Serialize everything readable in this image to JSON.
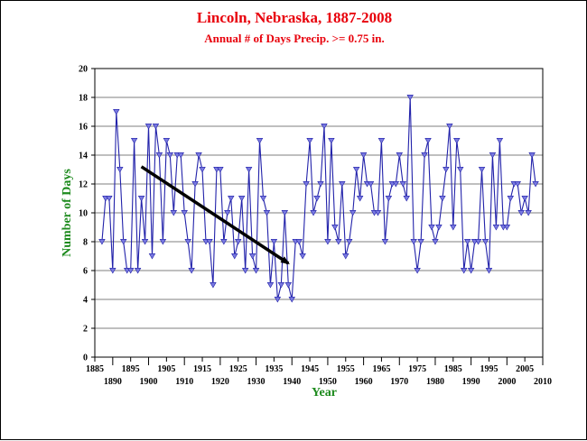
{
  "colors": {
    "title": "#e8000b",
    "axis_label": "#1d8a1d",
    "series": "#2222aa",
    "marker": "#7a7ae0",
    "grid": "#000000",
    "arrow": "#000000"
  },
  "chart_data": {
    "type": "line",
    "title": "Lincoln, Nebraska, 1887-2008",
    "subtitle": "Annual # of Days Precip. >= 0.75 in.",
    "xlabel": "Year",
    "ylabel": "Number of Days",
    "xlim": [
      1885,
      2010
    ],
    "ylim": [
      0,
      20
    ],
    "grid": "horizontal",
    "x_ticks_top": [
      1885,
      1895,
      1905,
      1915,
      1925,
      1935,
      1945,
      1955,
      1965,
      1975,
      1985,
      1995,
      2005
    ],
    "x_ticks_bottom": [
      1890,
      1900,
      1910,
      1920,
      1930,
      1940,
      1950,
      1960,
      1970,
      1980,
      1990,
      2000,
      2010
    ],
    "y_ticks": [
      0,
      2,
      4,
      6,
      8,
      10,
      12,
      14,
      16,
      18,
      20
    ],
    "series": [
      {
        "marker": "down-triangle",
        "x": [
          1887,
          1888,
          1889,
          1890,
          1891,
          1892,
          1893,
          1894,
          1895,
          1896,
          1897,
          1898,
          1899,
          1900,
          1901,
          1902,
          1903,
          1904,
          1905,
          1906,
          1907,
          1908,
          1909,
          1910,
          1911,
          1912,
          1913,
          1914,
          1915,
          1916,
          1917,
          1918,
          1919,
          1920,
          1921,
          1922,
          1923,
          1924,
          1925,
          1926,
          1927,
          1928,
          1929,
          1930,
          1931,
          1932,
          1933,
          1934,
          1935,
          1936,
          1937,
          1938,
          1939,
          1940,
          1941,
          1942,
          1943,
          1944,
          1945,
          1946,
          1947,
          1948,
          1949,
          1950,
          1951,
          1952,
          1953,
          1954,
          1955,
          1956,
          1957,
          1958,
          1959,
          1960,
          1961,
          1962,
          1963,
          1964,
          1965,
          1966,
          1967,
          1968,
          1969,
          1970,
          1971,
          1972,
          1973,
          1974,
          1975,
          1976,
          1977,
          1978,
          1979,
          1980,
          1981,
          1982,
          1983,
          1984,
          1985,
          1986,
          1987,
          1988,
          1989,
          1990,
          1991,
          1992,
          1993,
          1994,
          1995,
          1996,
          1997,
          1998,
          1999,
          2000,
          2001,
          2002,
          2003,
          2004,
          2005,
          2006,
          2007,
          2008
        ],
        "values": [
          8,
          11,
          11,
          6,
          17,
          13,
          8,
          6,
          6,
          15,
          6,
          11,
          8,
          16,
          7,
          16,
          14,
          8,
          15,
          14,
          10,
          14,
          14,
          10,
          8,
          6,
          12,
          14,
          13,
          8,
          8,
          5,
          13,
          13,
          8,
          10,
          11,
          7,
          8,
          11,
          6,
          13,
          7,
          6,
          15,
          11,
          10,
          5,
          8,
          4,
          5,
          10,
          5,
          4,
          8,
          8,
          7,
          12,
          15,
          10,
          11,
          12,
          16,
          8,
          15,
          9,
          8,
          12,
          7,
          8,
          10,
          13,
          11,
          14,
          12,
          12,
          10,
          10,
          15,
          8,
          11,
          12,
          12,
          14,
          12,
          11,
          18,
          8,
          6,
          8,
          14,
          15,
          9,
          8,
          9,
          11,
          13,
          16,
          9,
          15,
          13,
          6,
          8,
          6,
          8,
          8,
          13,
          8,
          6,
          14,
          9,
          15,
          9,
          9,
          11,
          12,
          12,
          10,
          11,
          10,
          14,
          12
        ]
      }
    ],
    "annotations": [
      {
        "type": "trend-arrow",
        "from": [
          1898,
          13.2
        ],
        "to": [
          1939,
          6.5
        ]
      }
    ]
  }
}
